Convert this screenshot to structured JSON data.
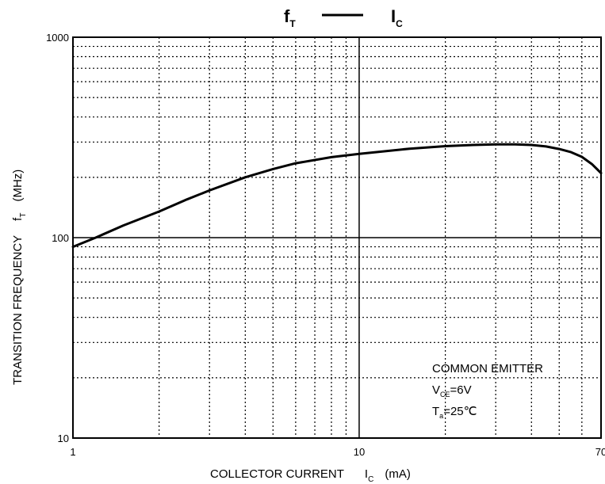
{
  "chart_data": {
    "type": "line",
    "title": {
      "y_symbol": "f",
      "y_symbol_sub": "T",
      "x_symbol": "I",
      "x_symbol_sub": "C"
    },
    "xlabel": {
      "text": "COLLECTOR CURRENT",
      "symbol": "I",
      "symbol_sub": "C",
      "unit": "(mA)"
    },
    "ylabel": {
      "text": "TRANSITION FREQUENCY",
      "symbol": "f",
      "symbol_sub": "T",
      "unit": "(MHz)"
    },
    "x_scale": "log",
    "y_scale": "log",
    "xlim": [
      1,
      70
    ],
    "ylim": [
      10,
      1000
    ],
    "x_ticks": [
      1,
      10,
      70
    ],
    "y_ticks": [
      10,
      100,
      1000
    ],
    "x_tick_labels": [
      "1",
      "10",
      "70"
    ],
    "y_tick_labels": [
      "10",
      "100",
      "1000"
    ],
    "grid": true,
    "annotation": {
      "line1": "COMMON EMITTER",
      "line2_symbol": "V",
      "line2_sub": "CE",
      "line2_value": "=6V",
      "line3_symbol": "T",
      "line3_sub": "a",
      "line3_value": "=25℃"
    },
    "series": [
      {
        "x": [
          1,
          1.2,
          1.5,
          2,
          2.5,
          3,
          4,
          5,
          6,
          8,
          10,
          15,
          20,
          25,
          30,
          35,
          40,
          45,
          50,
          55,
          60,
          65,
          70
        ],
        "y": [
          90,
          100,
          115,
          135,
          155,
          172,
          200,
          220,
          235,
          252,
          262,
          278,
          286,
          290,
          292,
          292,
          290,
          285,
          277,
          267,
          253,
          233,
          210
        ]
      }
    ]
  }
}
